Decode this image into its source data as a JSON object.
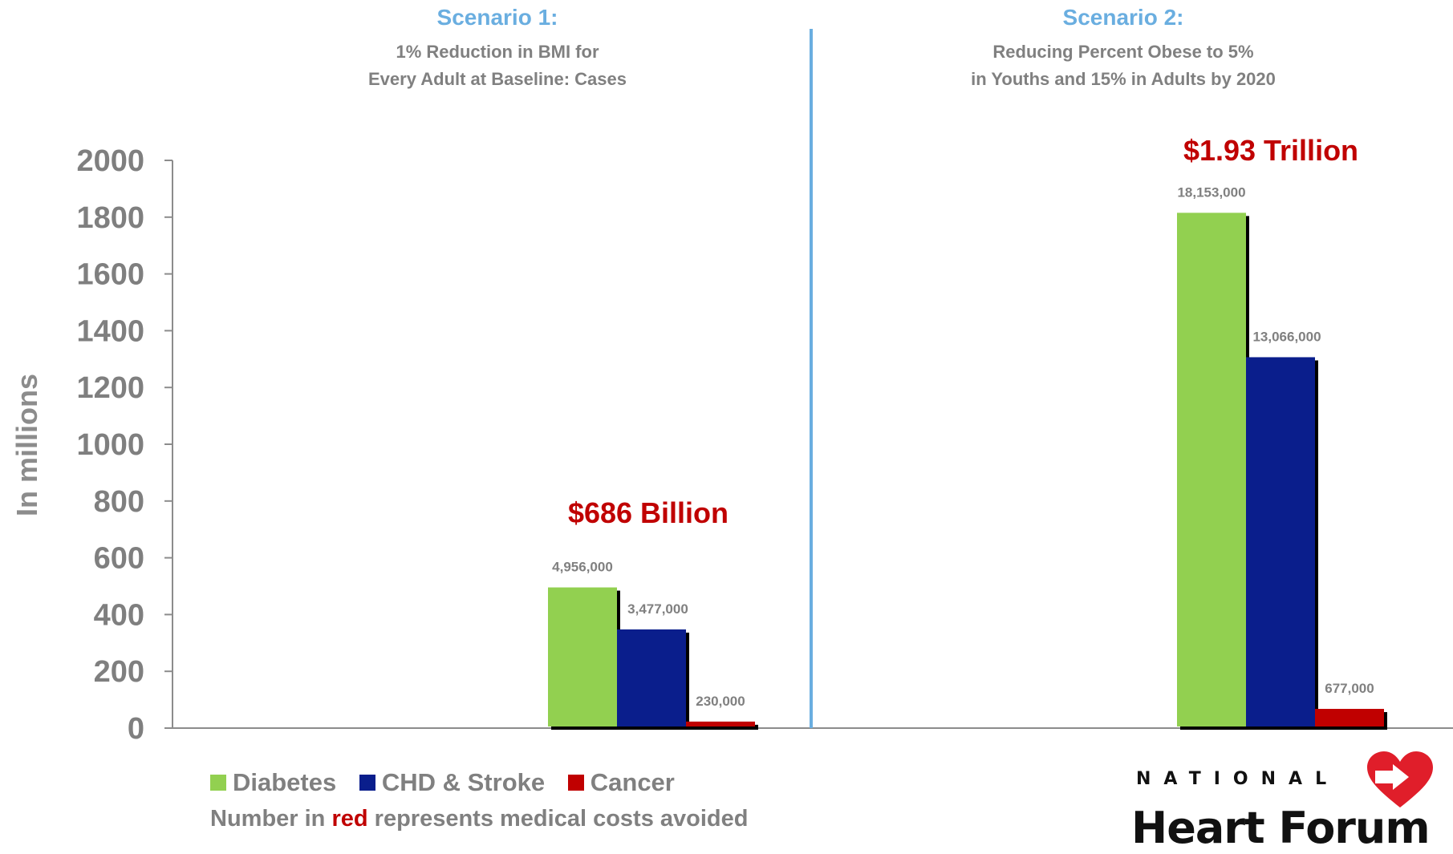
{
  "scenario1": {
    "title": "Scenario 1:",
    "subtitle": "1% Reduction in BMI for\nEvery Adult at Baseline: Cases"
  },
  "scenario2": {
    "title": "Scenario 2:",
    "subtitle": "Reducing Percent Obese to 5%\nin Youths and 15% in Adults by 2020"
  },
  "legend": {
    "items": [
      {
        "label": "Diabetes",
        "color": "#92d050"
      },
      {
        "label": "CHD & Stroke",
        "color": "#0a1e8c"
      },
      {
        "label": "Cancer",
        "color": "#c00000"
      }
    ],
    "note_prefix": "Number in ",
    "note_red": "red",
    "note_suffix": " represents medical costs avoided"
  },
  "logo": {
    "line1": "NATIONAL",
    "line2": "Heart Forum",
    "icon": "heart-logo-icon",
    "color": "#e01e2a"
  },
  "chart_data": {
    "type": "bar",
    "ylabel": "In millions",
    "ylim": [
      0,
      2000
    ],
    "yticks": [
      0,
      200,
      400,
      600,
      800,
      1000,
      1200,
      1400,
      1600,
      1800,
      2000
    ],
    "grid": false,
    "categories": [
      "Scenario 1",
      "Scenario 2"
    ],
    "series": [
      {
        "name": "Diabetes",
        "color": "#92d050",
        "values": [
          495.6,
          1815.3
        ],
        "labels": [
          "4,956,000",
          "18,153,000"
        ]
      },
      {
        "name": "CHD & Stroke",
        "color": "#0a1e8c",
        "values": [
          347.7,
          1306.6
        ],
        "labels": [
          "3,477,000",
          "13,066,000"
        ]
      },
      {
        "name": "Cancer",
        "color": "#c00000",
        "values": [
          23.0,
          67.7
        ],
        "labels": [
          "230,000",
          "677,000"
        ]
      }
    ],
    "annotations": [
      "$686 Billion",
      "$1.93 Trillion"
    ]
  }
}
